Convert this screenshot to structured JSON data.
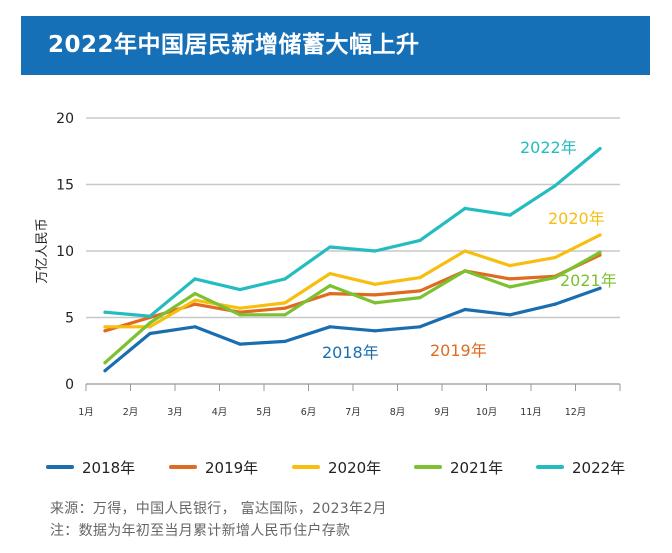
{
  "header": {
    "title": "2022年中国居民新增储蓄大幅上升"
  },
  "chart_data": {
    "type": "line",
    "title": "2022年中国居民新增储蓄大幅上升",
    "xlabel": "",
    "ylabel": "万亿人民币",
    "categories": [
      "1月",
      "2月",
      "3月",
      "4月",
      "5月",
      "6月",
      "7月",
      "8月",
      "9月",
      "10月",
      "11月",
      "12月"
    ],
    "ylim": [
      0,
      20
    ],
    "yticks": [
      0,
      5,
      10,
      15,
      20
    ],
    "grid": true,
    "legend_position": "bottom",
    "series": [
      {
        "name": "2018年",
        "color": "#1a6eaf",
        "values": [
          1.0,
          3.8,
          4.3,
          3.0,
          3.2,
          4.3,
          4.0,
          4.3,
          5.6,
          5.2,
          6.0,
          7.2
        ]
      },
      {
        "name": "2019年",
        "color": "#de6b1f",
        "values": [
          4.0,
          5.0,
          6.0,
          5.4,
          5.7,
          6.8,
          6.7,
          7.0,
          8.5,
          7.9,
          8.1,
          9.7
        ]
      },
      {
        "name": "2020年",
        "color": "#f7be0f",
        "values": [
          4.3,
          4.3,
          6.3,
          5.7,
          6.1,
          8.3,
          7.5,
          8.0,
          10.0,
          8.9,
          9.5,
          11.2
        ]
      },
      {
        "name": "2021年",
        "color": "#7cc130",
        "values": [
          1.6,
          4.6,
          6.8,
          5.2,
          5.2,
          7.4,
          6.1,
          6.5,
          8.5,
          7.3,
          8.0,
          9.9
        ]
      },
      {
        "name": "2022年",
        "color": "#25bcc0",
        "values": [
          5.4,
          5.1,
          7.9,
          7.1,
          7.9,
          10.3,
          10.0,
          10.8,
          13.2,
          12.7,
          14.9,
          17.7
        ]
      }
    ],
    "annotations": [
      "2022年",
      "2020年",
      "2021年",
      "2019年",
      "2018年"
    ]
  },
  "notes": {
    "source": "来源：万得，中国人民银行， 富达国际，2023年2月",
    "remark": "注：数据为年初至当月累计新增人民币住户存款"
  }
}
